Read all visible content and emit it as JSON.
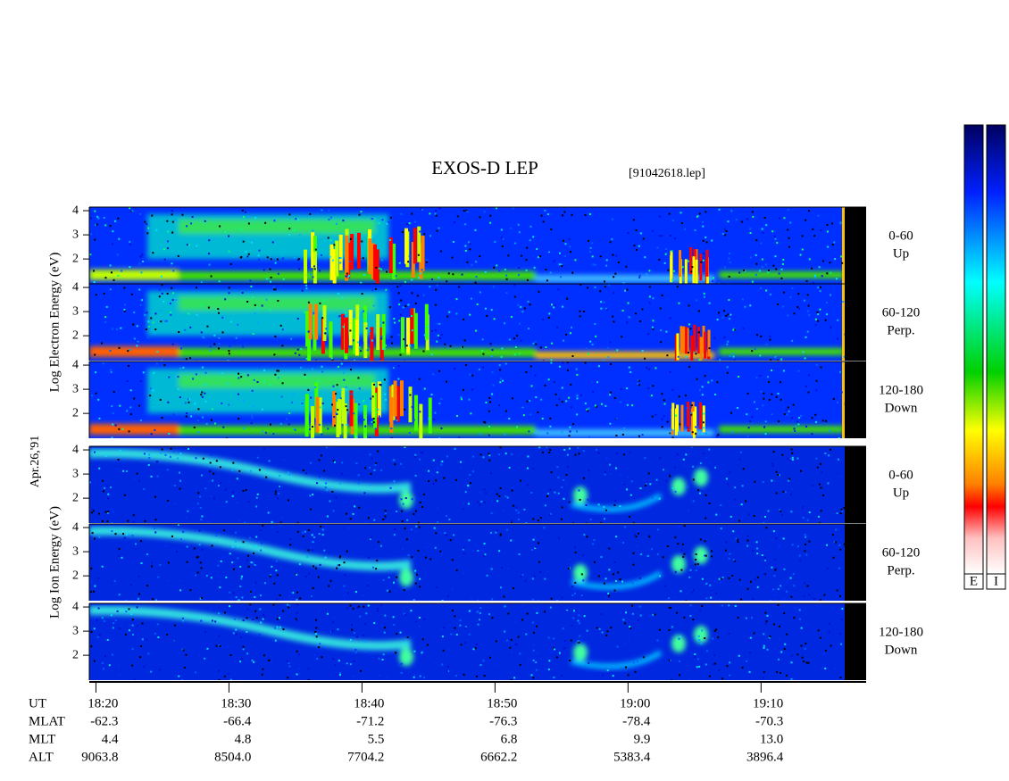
{
  "chart_data": {
    "type": "spectrogram",
    "title": "EXOS-D LEP",
    "file_label": "[91042618.lep]",
    "date_label": "Apr.26,'91",
    "ylim": [
      0.97,
      4.15
    ],
    "yticks": [
      2,
      3,
      4
    ],
    "xlim": [
      1099.5,
      1157.9
    ],
    "xticks": [
      {
        "value": 1100,
        "label": "18:20"
      },
      {
        "value": 1110,
        "label": "18:30"
      },
      {
        "value": 1120,
        "label": "18:40"
      },
      {
        "value": 1130,
        "label": "18:50"
      },
      {
        "value": 1140,
        "label": "19:00"
      },
      {
        "value": 1150,
        "label": "19:10"
      }
    ],
    "groups": [
      {
        "ylabel": "Log Electron Energy (eV)",
        "colorbar": "E",
        "panels": [
          {
            "range": "0-60",
            "direction": "Up"
          },
          {
            "range": "60-120",
            "direction": "Perp."
          },
          {
            "range": "120-180",
            "direction": "Down"
          }
        ]
      },
      {
        "ylabel": "Log Ion Energy (eV)",
        "colorbar": "I",
        "panels": [
          {
            "range": "0-60",
            "direction": "Up"
          },
          {
            "range": "60-120",
            "direction": "Perp."
          },
          {
            "range": "120-180",
            "direction": "Down"
          }
        ]
      }
    ],
    "ephemeris": [
      {
        "label": "UT"
      },
      {
        "label": "MLAT",
        "values": [
          "-62.3",
          "-66.4",
          "-71.2",
          "-76.3",
          "-78.4",
          "-70.3"
        ]
      },
      {
        "label": "MLT",
        "values": [
          "4.4",
          "4.8",
          "5.5",
          "6.8",
          "9.9",
          "13.0"
        ]
      },
      {
        "label": "ALT",
        "values": [
          "9063.8",
          "8504.0",
          "7704.2",
          "6662.2",
          "5383.4",
          "3896.4"
        ]
      }
    ]
  }
}
